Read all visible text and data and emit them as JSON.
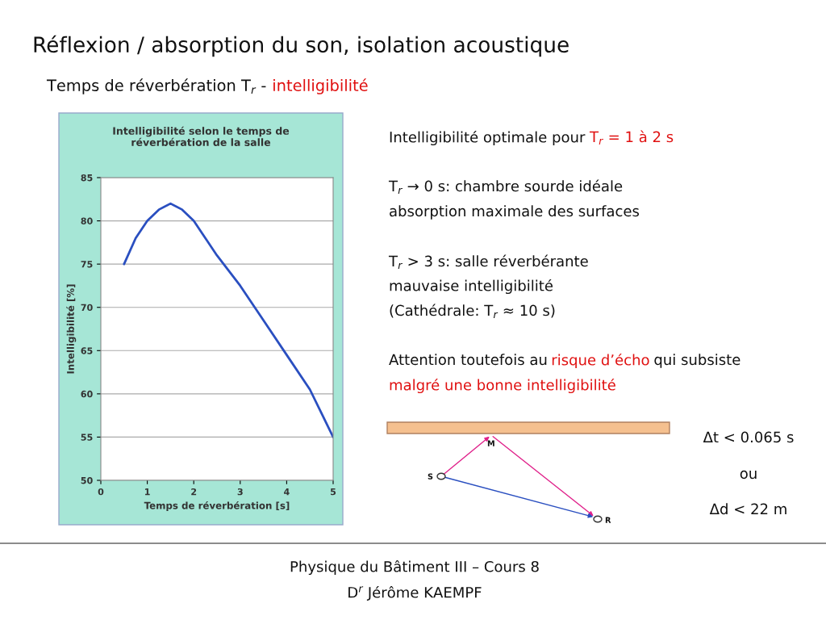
{
  "chart_data": {
    "type": "line",
    "title": "Intelligibilité selon le temps de\nréverbération de la salle",
    "xlabel": "Temps de réverbération [s]",
    "ylabel": "Intelligibilité [%]",
    "x": [
      0.5,
      0.75,
      1.0,
      1.25,
      1.5,
      1.75,
      2.0,
      2.25,
      2.5,
      3.0,
      3.5,
      4.0,
      4.5,
      5.0
    ],
    "series": [
      {
        "color": "#2a4fc0",
        "values": [
          75,
          78,
          80,
          81.3,
          82,
          81.3,
          80,
          78,
          76,
          72.5,
          68.5,
          64.5,
          60.5,
          55
        ]
      }
    ],
    "xlim": [
      0,
      5
    ],
    "ylim": [
      50,
      85
    ],
    "xticks": [
      0,
      1,
      2,
      3,
      4,
      5
    ],
    "yticks": [
      50,
      55,
      60,
      65,
      70,
      75,
      80,
      85
    ],
    "grid": "y",
    "marker": "none",
    "line_style": "solid",
    "legend": false,
    "annotations": [
      "Réflexion / absorption du son, isolation acoustique",
      "Temps de réverbération T$_{r}$ -",
      "intelligibilité",
      "Intelligibilité optimale pour",
      "T$_{r}$ = 1 à 2 s",
      "T$_{r}$ → 0 s: chambre sourde idéale",
      "absorption maximale des surfaces",
      "T$_{r}$ > 3 s: salle réverbérante",
      "mauvaise intelligibilité",
      "(Cathédrale: T$_{r}$ ≈ 10 s)",
      "Attention toutefois au",
      "risque d’écho",
      "qui subsiste",
      "malgré une bonne intelligibilité",
      "S",
      "M",
      "R",
      "Δt < 0.065 s",
      "ou",
      "Δd < 22 m",
      "Physique du Bâtiment III – Cours 8",
      "D$^{r}$ Jérôme KAEMPF"
    ]
  }
}
